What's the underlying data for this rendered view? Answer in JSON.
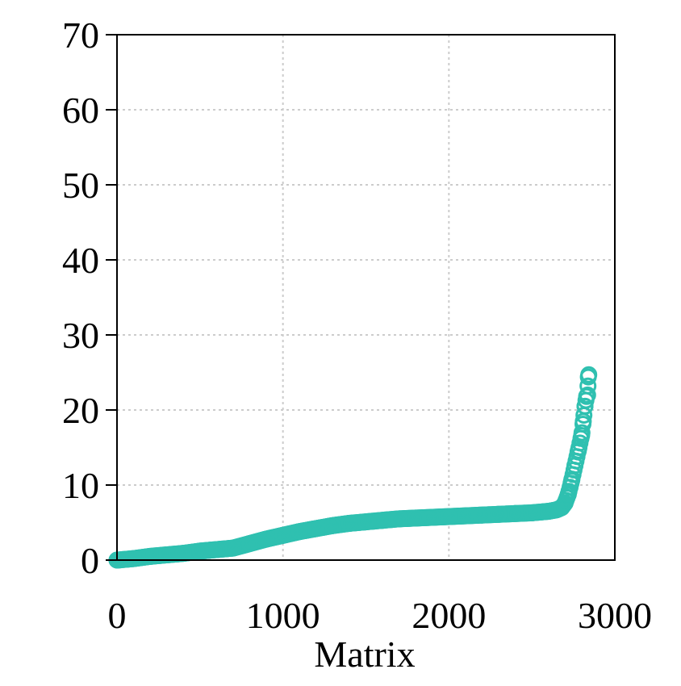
{
  "chart_data": {
    "type": "scatter",
    "title": "",
    "xlabel": "Matrix",
    "ylabel": "",
    "xlim": [
      0,
      3000
    ],
    "ylim": [
      0,
      70
    ],
    "x_ticks": [
      0,
      1000,
      2000,
      3000
    ],
    "y_ticks": [
      0,
      10,
      20,
      30,
      40,
      50,
      60,
      70
    ],
    "x_tick_labels": [
      "0",
      "1000",
      "2000",
      "3000"
    ],
    "y_tick_labels": [
      "0",
      "10",
      "20",
      "30",
      "40",
      "50",
      "60",
      "70"
    ],
    "grid": true,
    "legend": "none",
    "marker": "hollow-circle",
    "series_color": "#2fc0b0",
    "series": [
      {
        "curve": [
          [
            0,
            0.0
          ],
          [
            100,
            0.2
          ],
          [
            200,
            0.5
          ],
          [
            300,
            0.7
          ],
          [
            400,
            0.9
          ],
          [
            500,
            1.2
          ],
          [
            600,
            1.4
          ],
          [
            700,
            1.6
          ],
          [
            800,
            2.2
          ],
          [
            900,
            2.8
          ],
          [
            1000,
            3.3
          ],
          [
            1100,
            3.8
          ],
          [
            1200,
            4.2
          ],
          [
            1300,
            4.6
          ],
          [
            1400,
            4.9
          ],
          [
            1500,
            5.1
          ],
          [
            1600,
            5.3
          ],
          [
            1700,
            5.5
          ],
          [
            1800,
            5.6
          ],
          [
            1900,
            5.7
          ],
          [
            2000,
            5.8
          ],
          [
            2100,
            5.9
          ],
          [
            2200,
            6.0
          ],
          [
            2300,
            6.1
          ],
          [
            2400,
            6.2
          ],
          [
            2500,
            6.3
          ],
          [
            2600,
            6.5
          ],
          [
            2650,
            6.7
          ],
          [
            2680,
            7.0
          ],
          [
            2700,
            7.6
          ],
          [
            2720,
            8.8
          ],
          [
            2740,
            10.6
          ],
          [
            2760,
            12.6
          ],
          [
            2780,
            14.6
          ],
          [
            2800,
            16.6
          ],
          [
            2810,
            18.5
          ],
          [
            2820,
            20.5
          ],
          [
            2830,
            21.8
          ],
          [
            2836,
            22.0
          ],
          [
            2840,
            24.4
          ],
          [
            2843,
            24.7
          ]
        ]
      }
    ]
  }
}
